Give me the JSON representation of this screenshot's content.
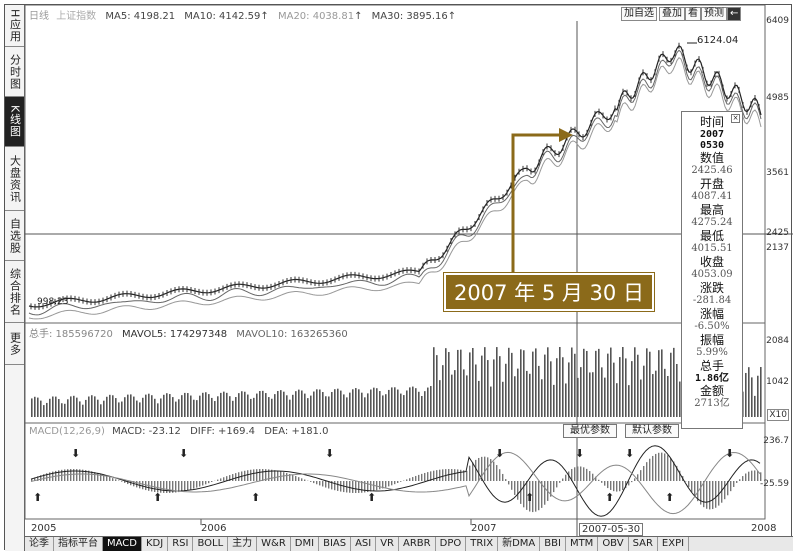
{
  "sidebar": {
    "items": [
      {
        "label": "H应用"
      },
      {
        "label": "分时图"
      },
      {
        "label": "K线图",
        "active": true
      },
      {
        "label": "大盘资讯"
      },
      {
        "label": "自选股"
      },
      {
        "label": "综合排名"
      },
      {
        "label": "更多"
      }
    ]
  },
  "price_panel": {
    "period": "日线",
    "name": "上证指数",
    "ma5": "MA5: 4198.21",
    "ma10": "MA10: 4142.59",
    "ma20": "MA20: 4038.81",
    "ma30": "MA30: 3895.16",
    "up_arrow": "↑",
    "axis": [
      "6409",
      "4985",
      "3561",
      "2425",
      "2137"
    ],
    "high_label": "6124.04",
    "low_label": "998.23"
  },
  "toolbar": {
    "add_watch": "加自选",
    "overlay": "叠加",
    "info": "看",
    "predict": "预测",
    "arrow": "←"
  },
  "volume_panel": {
    "total": "总手: 185596720",
    "mavol5": "MAVOL5: 174297348",
    "mavol10": "MAVOL10: 163265360",
    "axis": [
      "2084",
      "1042"
    ],
    "unit": "X10"
  },
  "macd_panel": {
    "title": "MACD(12,26,9)",
    "macd": "MACD: -23.12",
    "diff": "DIFF: +169.4",
    "dea": "DEA: +181.0",
    "axis": [
      "236.7",
      "-25.59"
    ],
    "best_params": "最优参数",
    "default_params": "默认参数"
  },
  "x_axis": {
    "labels": [
      "2005",
      "2006",
      "2007",
      "2008"
    ],
    "cursor_date": "2007-05-30"
  },
  "info_panel": {
    "close": "×",
    "time_label": "时间",
    "year": "2007",
    "date": "0530",
    "value_label": "数值",
    "value": "2425.46",
    "open_label": "开盘",
    "open": "4087.41",
    "high_label": "最高",
    "high": "4275.24",
    "low_label": "最低",
    "low": "4015.51",
    "close_label": "收盘",
    "close_val": "4053.09",
    "change_label": "涨跌",
    "change": "-281.84",
    "pct_label": "涨幅",
    "pct": "-6.50%",
    "amp_label": "振幅",
    "amp": "5.99%",
    "vol_label": "总手",
    "vol": "1.86亿",
    "amt_label": "金额",
    "amt": "2713亿"
  },
  "annotation": {
    "text": "2007 年 5 月 30 日"
  },
  "tabs": [
    "论季",
    "指标平台",
    "MACD",
    "KDJ",
    "RSI",
    "BOLL",
    "主力",
    "W&R",
    "DMI",
    "BIAS",
    "ASI",
    "VR",
    "ARBR",
    "DPO",
    "TRIX",
    "新DMA",
    "BBI",
    "MTM",
    "OBV",
    "SAR",
    "EXPI"
  ],
  "active_tab": "MACD",
  "colors": {
    "annotation_bg": "#8b6a1a",
    "line": "#333333"
  }
}
